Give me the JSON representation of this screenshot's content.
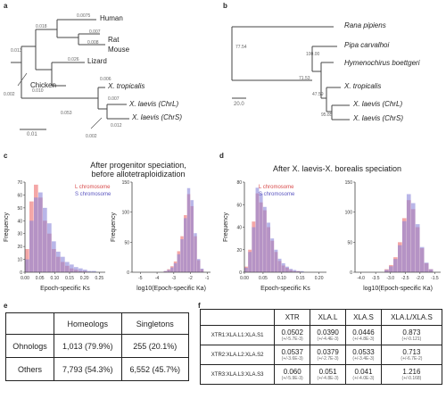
{
  "panels": {
    "a": "a",
    "b": "b",
    "c": "c",
    "d": "d",
    "e": "e",
    "f": "f"
  },
  "tree_a": {
    "taxa": [
      "Human",
      "Rat",
      "Mouse",
      "Lizard",
      "Chicken",
      "X. tropicalis",
      "X. laevis (ChrL)",
      "X. laevis (ChrS)"
    ],
    "branch_lengths": [
      "0.0075",
      "0.018",
      "0.007",
      "0.008",
      "0.026",
      "0.013",
      "0.010",
      "0.002",
      "0.053",
      "0.006",
      "0.007",
      "0.012",
      "0.002",
      "0.003"
    ],
    "scale": "0.01"
  },
  "tree_b": {
    "taxa": [
      "Rana pipiens",
      "Pipa carvalhoi",
      "Hymenochirus boettgeri",
      "X. tropicalis",
      "X. laevis (ChrL)",
      "X. laevis (ChrS)"
    ],
    "supports": [
      "77.54",
      "100.00",
      "71.53",
      "47.59",
      "95.85"
    ],
    "scale": "20.0"
  },
  "panel_c": {
    "title_line1": "After progenitor speciation,",
    "title_line2": "before allotetraploidization",
    "legend": [
      "L chromosome",
      "S chromosome"
    ]
  },
  "panel_d": {
    "title": "After X. laevis-X. borealis speciation",
    "legend": [
      "L chromosome",
      "S chromosome"
    ]
  },
  "colors": {
    "L": "#f08a8a",
    "S": "#8a86d8",
    "overlap": "#8e5aa6"
  },
  "chart_data": [
    {
      "type": "bar",
      "panel": "c-left",
      "ylabel": "Frequency",
      "xlabel": "Epoch-specific Ks",
      "xticks": [
        "0.00",
        "0.05",
        "0.10",
        "0.15",
        "0.20",
        "0.25"
      ],
      "yticks": [
        "0",
        "10",
        "20",
        "30",
        "40",
        "50",
        "60",
        "70"
      ],
      "xlim": [
        0,
        0.27
      ],
      "ylim": [
        0,
        70
      ],
      "bins": [
        0.0,
        0.015,
        0.03,
        0.045,
        0.06,
        0.075,
        0.09,
        0.105,
        0.12,
        0.135,
        0.15,
        0.165,
        0.18,
        0.195,
        0.21,
        0.225,
        0.24
      ],
      "series": [
        {
          "name": "L chromosome",
          "values": [
            18,
            55,
            68,
            58,
            40,
            30,
            18,
            12,
            8,
            5,
            3,
            2,
            1,
            1,
            0,
            0,
            0
          ]
        },
        {
          "name": "S chromosome",
          "values": [
            10,
            40,
            58,
            62,
            50,
            38,
            24,
            16,
            12,
            8,
            6,
            4,
            3,
            2,
            1,
            1,
            0
          ]
        }
      ]
    },
    {
      "type": "bar",
      "panel": "c-right",
      "ylabel": "Frequency",
      "xlabel": "log10(Epoch-specific Ka)",
      "xticks": [
        "-5",
        "-4",
        "-3",
        "-2",
        "-1"
      ],
      "yticks": [
        "0",
        "50",
        "100",
        "150"
      ],
      "xlim": [
        -5.5,
        -0.8
      ],
      "ylim": [
        0,
        150
      ],
      "bins": [
        -3.6,
        -3.4,
        -3.2,
        -3.0,
        -2.8,
        -2.6,
        -2.4,
        -2.2,
        -2.0,
        -1.8,
        -1.6,
        -1.4
      ],
      "series": [
        {
          "name": "L chromosome",
          "values": [
            2,
            5,
            10,
            18,
            35,
            60,
            95,
            130,
            110,
            60,
            20,
            5
          ]
        },
        {
          "name": "S chromosome",
          "values": [
            2,
            4,
            8,
            15,
            30,
            55,
            90,
            140,
            120,
            65,
            22,
            6
          ]
        }
      ]
    },
    {
      "type": "bar",
      "panel": "d-left",
      "ylabel": "Frequency",
      "xlabel": "Epoch-specific Ks",
      "xticks": [
        "0.00",
        "0.05",
        "0.10",
        "0.15",
        "0.20"
      ],
      "yticks": [
        "0",
        "20",
        "40",
        "60",
        "80"
      ],
      "xlim": [
        0,
        0.22
      ],
      "ylim": [
        0,
        80
      ],
      "bins": [
        0.0,
        0.01,
        0.02,
        0.03,
        0.04,
        0.05,
        0.06,
        0.07,
        0.08,
        0.09,
        0.1,
        0.11,
        0.12,
        0.13,
        0.14,
        0.15,
        0.16
      ],
      "series": [
        {
          "name": "L chromosome",
          "values": [
            5,
            20,
            45,
            70,
            62,
            55,
            40,
            28,
            18,
            10,
            6,
            4,
            2,
            1,
            1,
            0,
            0
          ]
        },
        {
          "name": "S chromosome",
          "values": [
            4,
            18,
            40,
            75,
            70,
            58,
            44,
            30,
            20,
            12,
            8,
            5,
            3,
            2,
            1,
            1,
            0
          ]
        }
      ]
    },
    {
      "type": "bar",
      "panel": "d-right",
      "ylabel": "",
      "xlabel": "log10(Epoch-specific Ka)",
      "xticks": [
        "-4.0",
        "-3.5",
        "-3.0",
        "-2.5",
        "-2.0",
        "-1.5"
      ],
      "yticks": [
        "0",
        "50",
        "100",
        "150"
      ],
      "xlim": [
        -4.2,
        -1.3
      ],
      "ylim": [
        0,
        150
      ],
      "bins": [
        -3.2,
        -3.05,
        -2.9,
        -2.75,
        -2.6,
        -2.45,
        -2.3,
        -2.15,
        -2.0,
        -1.85,
        -1.7
      ],
      "series": [
        {
          "name": "L chromosome",
          "values": [
            5,
            12,
            25,
            50,
            90,
            120,
            105,
            75,
            40,
            15,
            5
          ]
        },
        {
          "name": "S chromosome",
          "values": [
            4,
            10,
            22,
            45,
            85,
            130,
            115,
            80,
            42,
            16,
            5
          ]
        }
      ]
    }
  ],
  "table_e": {
    "header": [
      "",
      "Homeologs",
      "Singletons"
    ],
    "rows": [
      [
        "Ohnologs",
        "1,013 (79.9%)",
        "255 (20.1%)"
      ],
      [
        "Others",
        "7,793 (54.3%)",
        "6,552 (45.7%)"
      ]
    ]
  },
  "table_f": {
    "header": [
      "",
      "XTR",
      "XLA.L",
      "XLA.S",
      "XLA.L/XLA.S"
    ],
    "rows": [
      {
        "label": "XTR1:XLA.L1:XLA.S1",
        "cells": [
          [
            "0.0502",
            "(+/-5.7E-3)"
          ],
          [
            "0.0390",
            "(+/-4.4E-3)"
          ],
          [
            "0.0446",
            "(+/-4.8E-3)"
          ],
          [
            "0.873",
            "(+/-0.121)"
          ]
        ]
      },
      {
        "label": "XTR2:XLA.L2:XLA.S2",
        "cells": [
          [
            "0.0537",
            "(+/-3.6E-3)"
          ],
          [
            "0.0379",
            "(+/-2.7E-3)"
          ],
          [
            "0.0533",
            "(+/-3.4E-3)"
          ],
          [
            "0.713",
            "(+/-6.7E-2)"
          ]
        ]
      },
      {
        "label": "XTR3:XLA.L3:XLA.S3",
        "cells": [
          [
            "0.060",
            "(+/-5.9E-3)"
          ],
          [
            "0.051",
            "(+/-4.8E-3)"
          ],
          [
            "0.041",
            "(+/-4.0E-3)"
          ],
          [
            "1.216",
            "(+/-0.168)"
          ]
        ]
      }
    ]
  }
}
